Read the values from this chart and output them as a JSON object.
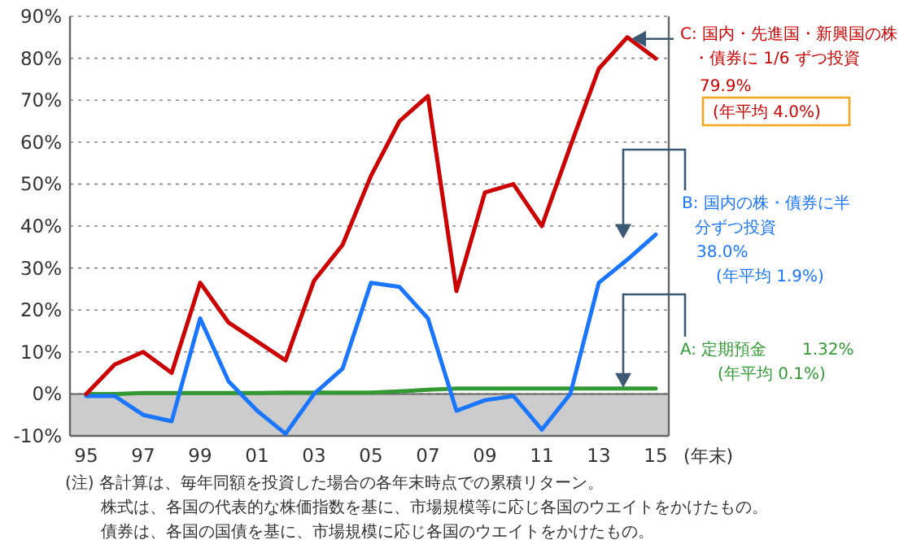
{
  "chart_data": {
    "type": "line",
    "xlabel": "(年末)",
    "categories": [
      "95",
      null,
      "97",
      null,
      "99",
      null,
      "01",
      null,
      "03",
      null,
      "05",
      null,
      "07",
      null,
      "09",
      null,
      "11",
      null,
      "13",
      null,
      "15"
    ],
    "series": [
      {
        "name": "C: 国内・先進国・新興国の株・債券に 1/6 ずつ投資",
        "color": "#cc0000",
        "values": [
          0,
          7,
          10,
          5,
          26.5,
          17,
          12.5,
          8,
          27,
          35.5,
          52,
          65,
          71,
          24.5,
          48,
          50,
          40,
          59,
          77.5,
          85,
          79.9
        ]
      },
      {
        "name": "B: 国内の株・債券に半分ずつ投資",
        "color": "#1a75ff",
        "values": [
          -0.5,
          -0.5,
          -5,
          -6.5,
          18,
          3,
          -4,
          -9.5,
          0,
          6,
          26.5,
          25.5,
          18,
          -4,
          -1.5,
          -0.5,
          -8.5,
          0,
          26.5,
          32,
          38
        ]
      },
      {
        "name": "A: 定期預金",
        "color": "#339933",
        "values": [
          0,
          0,
          0.2,
          0.2,
          0.2,
          0.2,
          0.2,
          0.3,
          0.3,
          0.3,
          0.3,
          0.6,
          1,
          1.3,
          1.3,
          1.3,
          1.3,
          1.3,
          1.3,
          1.3,
          1.3
        ]
      }
    ],
    "ylim": [
      -10,
      90
    ],
    "yticks": [
      {
        "value": -10,
        "label": "-10%"
      },
      {
        "value": 0,
        "label": "0%"
      },
      {
        "value": 10,
        "label": "10%"
      },
      {
        "value": 20,
        "label": "20%"
      },
      {
        "value": 30,
        "label": "30%"
      },
      {
        "value": 40,
        "label": "40%"
      },
      {
        "value": 50,
        "label": "50%"
      },
      {
        "value": 60,
        "label": "60%"
      },
      {
        "value": 70,
        "label": "70%"
      },
      {
        "value": 80,
        "label": "80%"
      },
      {
        "value": 90,
        "label": "90%"
      }
    ],
    "grid": "y",
    "legend": false,
    "line_style": "solid",
    "marker": "none",
    "bands": [
      {
        "axis": "y",
        "from": -10,
        "to": 0,
        "color": "#cccccc"
      }
    ],
    "annotations": [
      "79.9%",
      "(年平均 4.0%)",
      "38.0%",
      "(年平均 1.9%)",
      "1.32%",
      "(年平均 0.1%)",
      "(注) 各計算は、毎年同額を投資した場合の各年末時点での累積リターン。",
      "株式は、各国の代表的な株価指数を基に、市場規模等に応じ各国のウエイトをかけたもの。",
      "債券は、各国の国債を基に、市場規模に応じ各国のウエイトをかけたもの。"
    ]
  }
}
